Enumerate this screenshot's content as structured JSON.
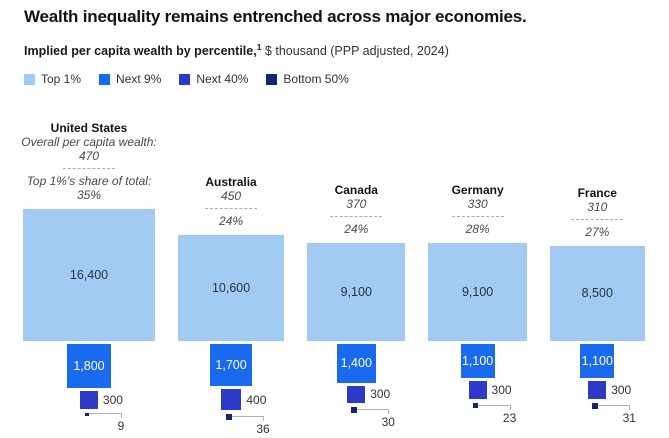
{
  "header": {
    "title": "Wealth inequality remains entrenched across major economies.",
    "subtitle_bold": "Implied per capita wealth by percentile,",
    "footnote_marker": "1",
    "subtitle_rest": " $ thousand (PPP adjusted, 2024)"
  },
  "legend": {
    "items": [
      {
        "label": "Top 1%",
        "color": "#A1CBF2"
      },
      {
        "label": "Next 9%",
        "color": "#1A6AF0"
      },
      {
        "label": "Next 40%",
        "color": "#2D39C8"
      },
      {
        "label": "Bottom 50%",
        "color": "#16246E"
      }
    ]
  },
  "chart_data": {
    "type": "proportional-square-bar",
    "title": "Implied per capita wealth by percentile, $ thousand (PPP adjusted, 2024)",
    "unit": "$ thousand per capita (PPP adjusted, 2024)",
    "segments": [
      "Top 1%",
      "Next 9%",
      "Next 40%",
      "Bottom 50%"
    ],
    "segment_colors": [
      "#A1CBF2",
      "#1A6AF0",
      "#2D39C8",
      "#16246E"
    ],
    "annotations": {
      "overall_label": "Overall per capita wealth:",
      "share_label": "Top 1%'s share of total:"
    },
    "countries": [
      {
        "name": "United States",
        "overall_wealth": "470",
        "top1_share": "35%",
        "show_annotation_labels": true,
        "values": [
          16400,
          1800,
          300,
          9
        ],
        "value_labels": [
          "16,400",
          "1,800",
          "300",
          "9"
        ]
      },
      {
        "name": "Australia",
        "overall_wealth": "450",
        "top1_share": "24%",
        "show_annotation_labels": false,
        "values": [
          10600,
          1700,
          400,
          36
        ],
        "value_labels": [
          "10,600",
          "1,700",
          "400",
          "36"
        ]
      },
      {
        "name": "Canada",
        "overall_wealth": "370",
        "top1_share": "24%",
        "show_annotation_labels": false,
        "values": [
          9100,
          1400,
          300,
          30
        ],
        "value_labels": [
          "9,100",
          "1,400",
          "300",
          "30"
        ]
      },
      {
        "name": "Germany",
        "overall_wealth": "330",
        "top1_share": "28%",
        "show_annotation_labels": false,
        "values": [
          9100,
          1100,
          300,
          23
        ],
        "value_labels": [
          "9,100",
          "1,100",
          "300",
          "23"
        ]
      },
      {
        "name": "France",
        "overall_wealth": "310",
        "top1_share": "27%",
        "show_annotation_labels": false,
        "values": [
          8500,
          1100,
          300,
          31
        ],
        "value_labels": [
          "8,500",
          "1,100",
          "300",
          "31"
        ]
      }
    ],
    "layout_hints": {
      "square_scaling": "side length proportional to sqrt(value)",
      "baseline": "all Top 1% squares bottom-aligned; smaller percentile squares stack beneath, centered",
      "legend_position": "top-left under subtitle",
      "grid": false
    }
  }
}
